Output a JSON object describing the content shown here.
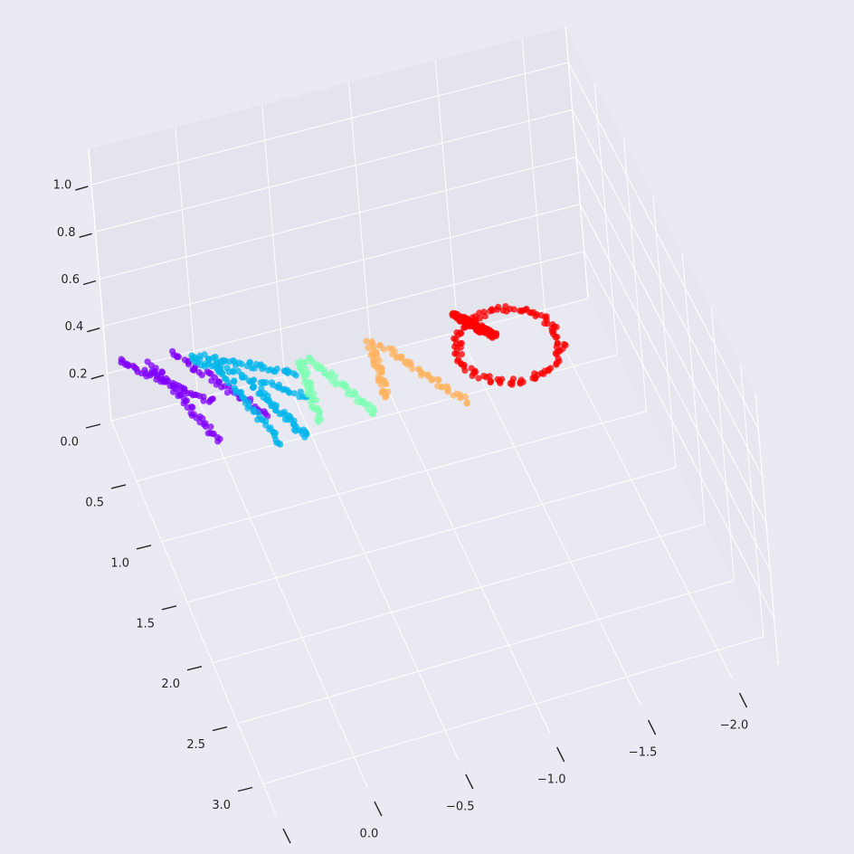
{
  "chart_data": {
    "type": "scatter",
    "projection": "3d",
    "title": "",
    "xlabel": "",
    "ylabel": "",
    "zlabel": "",
    "grid": true,
    "legend": "none",
    "x_axis": {
      "range": [
        0.5,
        -2.25
      ],
      "ticks": [
        0.5,
        0.0,
        -0.5,
        -1.0,
        -1.5,
        -2.0
      ],
      "tick_labels": [
        "0.5",
        "0.0",
        "−0.5",
        "−1.0",
        "−1.5",
        "−2.0"
      ]
    },
    "y_axis": {
      "range": [
        0.0,
        3.25
      ],
      "ticks": [
        0.0,
        0.5,
        1.0,
        1.5,
        2.0,
        2.5,
        3.0
      ],
      "tick_labels": [
        "0.0",
        "0.5",
        "1.0",
        "1.5",
        "2.0",
        "2.5",
        "3.0"
      ]
    },
    "z_axis": {
      "range": [
        0.0,
        1.15
      ],
      "ticks": [
        0.2,
        0.4,
        0.6,
        0.8,
        1.0
      ],
      "tick_labels": [
        "0.2",
        "0.4",
        "0.6",
        "0.8",
        "1.0"
      ]
    },
    "clusters": [
      {
        "color": "#8000ff",
        "points_per_strand": 45,
        "strands": [
          {
            "start": [
              0.35,
              -0.35,
              0.05
            ],
            "end": [
              -0.05,
              0.15,
              0.05
            ]
          },
          {
            "start": [
              0.2,
              -0.25,
              0.06
            ],
            "end": [
              0.0,
              0.45,
              0.05
            ]
          },
          {
            "start": [
              0.05,
              -0.3,
              0.05
            ],
            "end": [
              -0.3,
              0.35,
              0.05
            ]
          }
        ]
      },
      {
        "color": "#00b5eb",
        "points_per_strand": 45,
        "strands": [
          {
            "start": [
              -0.05,
              -0.25,
              0.05
            ],
            "end": [
              -0.55,
              0.1,
              0.05
            ]
          },
          {
            "start": [
              -0.05,
              -0.2,
              0.05
            ],
            "end": [
              -0.55,
              0.3,
              0.05
            ]
          },
          {
            "start": [
              -0.15,
              -0.15,
              0.05
            ],
            "end": [
              -0.3,
              0.6,
              0.05
            ]
          },
          {
            "start": [
              -0.3,
              0.1,
              0.05
            ],
            "end": [
              -0.45,
              0.6,
              0.05
            ]
          }
        ]
      },
      {
        "color": "#80ffb4",
        "points_per_strand": 45,
        "strands": [
          {
            "start": [
              -0.6,
              0.0,
              0.05
            ],
            "end": [
              -0.55,
              0.5,
              0.05
            ]
          },
          {
            "start": [
              -0.65,
              0.0,
              0.05
            ],
            "end": [
              -0.85,
              0.55,
              0.05
            ]
          }
        ]
      },
      {
        "color": "#ffb360",
        "points_per_strand": 45,
        "strands": [
          {
            "start": [
              -1.0,
              0.0,
              0.05
            ],
            "end": [
              -0.95,
              0.45,
              0.05
            ]
          },
          {
            "start": [
              -1.05,
              0.05,
              0.05
            ],
            "end": [
              -1.35,
              0.65,
              0.05
            ]
          }
        ]
      },
      {
        "color": "#ff0000",
        "points_per_strand": 120,
        "strands": [
          {
            "loop_center": [
              -1.7,
              0.3,
              0.05
            ],
            "loop_radius": [
              0.28,
              0.3
            ]
          },
          {
            "start": [
              -1.5,
              -0.05,
              0.05
            ],
            "end": [
              -1.65,
              0.2,
              0.05
            ]
          }
        ]
      }
    ]
  }
}
